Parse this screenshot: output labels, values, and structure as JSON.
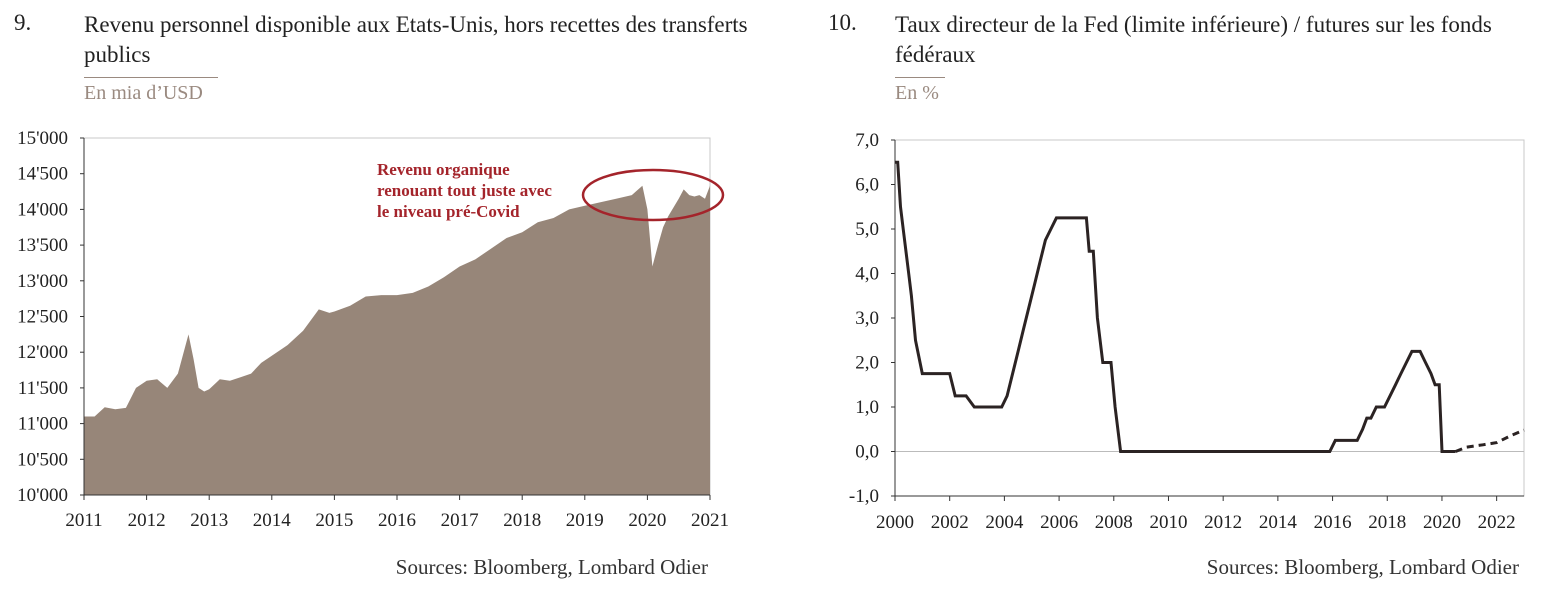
{
  "charts": [
    {
      "number": "9.",
      "title": "Revenu personnel disponible aux Etats-Unis, hors recettes des transferts publics",
      "unit": "En mia d’USD",
      "source": "Sources: Bloomberg, Lombard Odier",
      "annotation": [
        "Revenu organique",
        "renouant tout juste avec",
        "le niveau pré-Covid"
      ],
      "fill_color": "#978679",
      "annotation_color": "#a4242b"
    },
    {
      "number": "10.",
      "title": "Taux directeur de la Fed (limite inférieure) / futures sur les fonds fédéraux",
      "unit": "En %",
      "source": "Sources: Bloomberg, Lombard Odier",
      "line_color": "#2b2323"
    }
  ],
  "chart_data": [
    {
      "type": "area",
      "ylim": [
        10000,
        15000
      ],
      "xlim": [
        2011,
        2021
      ],
      "yticks": [
        "10'000",
        "10'500",
        "11'000",
        "11'500",
        "12'000",
        "12'500",
        "13'000",
        "13'500",
        "14'000",
        "14'500",
        "15'000"
      ],
      "xticks": [
        "2011",
        "2012",
        "2013",
        "2014",
        "2015",
        "2016",
        "2017",
        "2018",
        "2019",
        "2020",
        "2021"
      ],
      "x": [
        2011.0,
        2011.17,
        2011.33,
        2011.5,
        2011.67,
        2011.83,
        2012.0,
        2012.17,
        2012.33,
        2012.5,
        2012.67,
        2012.75,
        2012.83,
        2012.92,
        2013.0,
        2013.17,
        2013.33,
        2013.5,
        2013.67,
        2013.83,
        2014.0,
        2014.25,
        2014.5,
        2014.75,
        2014.92,
        2015.0,
        2015.25,
        2015.5,
        2015.75,
        2016.0,
        2016.25,
        2016.5,
        2016.75,
        2017.0,
        2017.25,
        2017.5,
        2017.75,
        2018.0,
        2018.25,
        2018.5,
        2018.75,
        2019.0,
        2019.25,
        2019.5,
        2019.75,
        2019.92,
        2020.0,
        2020.08,
        2020.17,
        2020.25,
        2020.33,
        2020.5,
        2020.58,
        2020.67,
        2020.75,
        2020.83,
        2020.92,
        2021.0
      ],
      "values": [
        11100,
        11100,
        11230,
        11200,
        11220,
        11500,
        11600,
        11620,
        11500,
        11700,
        12250,
        11900,
        11500,
        11450,
        11480,
        11620,
        11600,
        11650,
        11700,
        11850,
        11950,
        12100,
        12300,
        12600,
        12550,
        12570,
        12650,
        12780,
        12800,
        12800,
        12830,
        12920,
        13050,
        13200,
        13300,
        13450,
        13600,
        13680,
        13820,
        13880,
        14000,
        14050,
        14100,
        14150,
        14200,
        14330,
        14000,
        13200,
        13500,
        13750,
        13900,
        14150,
        14280,
        14200,
        14180,
        14200,
        14150,
        14330
      ]
    },
    {
      "type": "line",
      "ylim": [
        -1,
        7
      ],
      "xlim": [
        2000,
        2023
      ],
      "yticks": [
        "-1,0",
        "0,0",
        "1,0",
        "2,0",
        "3,0",
        "4,0",
        "5,0",
        "6,0",
        "7,0"
      ],
      "xticks": [
        "2000",
        "2002",
        "2004",
        "2006",
        "2008",
        "2010",
        "2012",
        "2014",
        "2016",
        "2018",
        "2020",
        "2022"
      ],
      "series": [
        {
          "style": "solid",
          "x": [
            2000.0,
            2000.1,
            2000.2,
            2000.3,
            2000.5,
            2000.6,
            2000.75,
            2001.0,
            2001.5,
            2002.0,
            2002.2,
            2002.6,
            2002.9,
            2003.3,
            2003.5,
            2003.7,
            2003.9,
            2004.1,
            2004.3,
            2004.5,
            2004.7,
            2004.9,
            2005.1,
            2005.3,
            2005.5,
            2005.7,
            2005.9,
            2006.1,
            2006.3,
            2006.5,
            2006.8,
            2007.0,
            2007.1,
            2007.25,
            2007.4,
            2007.6,
            2007.75,
            2007.9,
            2008.05,
            2008.25,
            2009.0,
            2012.0,
            2014.0,
            2015.8,
            2015.9,
            2016.1,
            2016.9,
            2017.1,
            2017.25,
            2017.4,
            2017.6,
            2017.9,
            2018.1,
            2018.3,
            2018.5,
            2018.7,
            2018.9,
            2019.2,
            2019.4,
            2019.6,
            2019.75,
            2019.9,
            2020.0,
            2020.1,
            2020.3,
            2020.5
          ],
          "y": [
            6.5,
            6.5,
            5.5,
            5.0,
            4.0,
            3.5,
            2.5,
            1.75,
            1.75,
            1.75,
            1.25,
            1.25,
            1.0,
            1.0,
            1.0,
            1.0,
            1.0,
            1.25,
            1.75,
            2.25,
            2.75,
            3.25,
            3.75,
            4.25,
            4.75,
            5.0,
            5.25,
            5.25,
            5.25,
            5.25,
            5.25,
            5.25,
            4.5,
            4.5,
            3.0,
            2.0,
            2.0,
            2.0,
            1.0,
            0.0,
            0.0,
            0.0,
            0.0,
            0.0,
            0.0,
            0.25,
            0.25,
            0.5,
            0.75,
            0.75,
            1.0,
            1.0,
            1.25,
            1.5,
            1.75,
            2.0,
            2.25,
            2.25,
            2.0,
            1.75,
            1.5,
            1.5,
            0.0,
            0.0,
            0.0,
            0.0
          ]
        },
        {
          "style": "dashed",
          "x": [
            2020.5,
            2020.9,
            2021.5,
            2022.0,
            2022.5,
            2023.0
          ],
          "y": [
            0.0,
            0.1,
            0.15,
            0.2,
            0.35,
            0.48
          ]
        }
      ]
    }
  ]
}
